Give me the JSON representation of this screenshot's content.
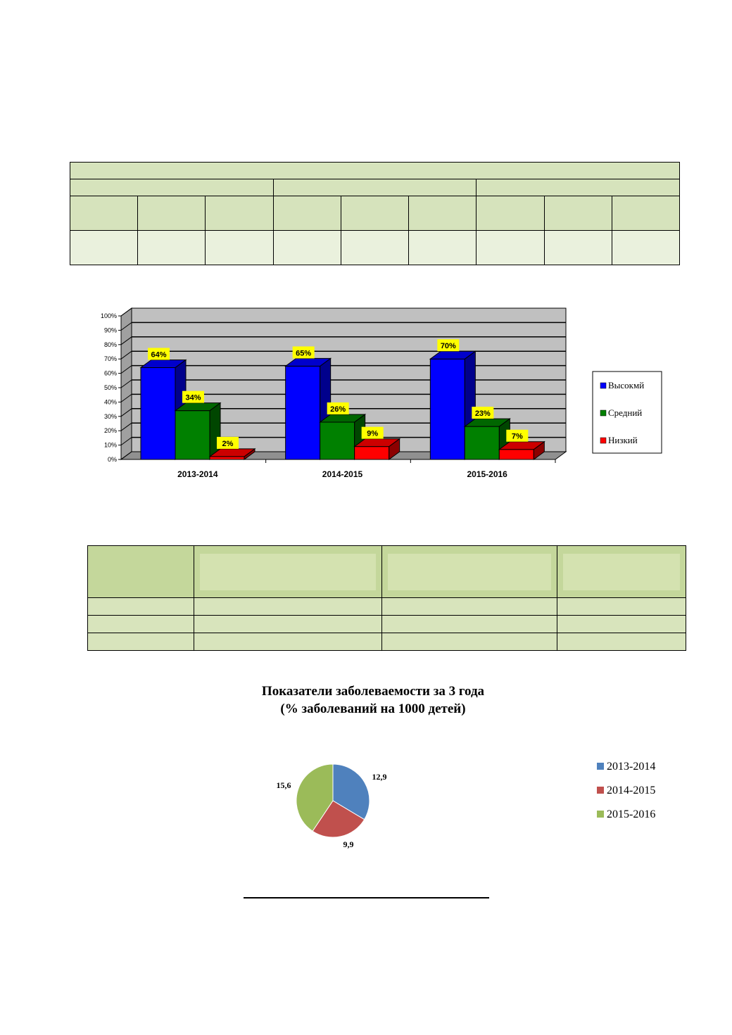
{
  "chart_data": [
    {
      "type": "bar",
      "categories": [
        "2013-2014",
        "2014-2015",
        "2015-2016"
      ],
      "series": [
        {
          "name": "Высокмй",
          "values": [
            64,
            65,
            70
          ],
          "color": "#0000ff",
          "data_labels": [
            "64%",
            "65%",
            "70%"
          ]
        },
        {
          "name": "Средний",
          "values": [
            34,
            26,
            23
          ],
          "color": "#008000",
          "data_labels": [
            "34%",
            "26%",
            "23%"
          ]
        },
        {
          "name": "Низкий",
          "values": [
            2,
            9,
            7
          ],
          "color": "#ff0000",
          "data_labels": [
            "2%",
            "9%",
            "7%"
          ]
        }
      ],
      "ylim": [
        0,
        100
      ],
      "yticks": [
        "0%",
        "10%",
        "20%",
        "30%",
        "40%",
        "50%",
        "60%",
        "70%",
        "80%",
        "90%",
        "100%"
      ],
      "grid": true,
      "legend": "right",
      "style": "3d-column"
    },
    {
      "type": "pie",
      "title": "Показатели заболеваемости за 3 года",
      "subtitle": "(% заболеваний на 1000 детей)",
      "labels": [
        "2013-2014",
        "2014-2015",
        "2015-2016"
      ],
      "values": [
        12.9,
        9.9,
        15.6
      ],
      "value_labels": [
        "12,9",
        "9,9",
        "15,6"
      ],
      "colors": [
        "#4f81bd",
        "#c0504d",
        "#9bbb59"
      ],
      "legend": "right"
    }
  ]
}
